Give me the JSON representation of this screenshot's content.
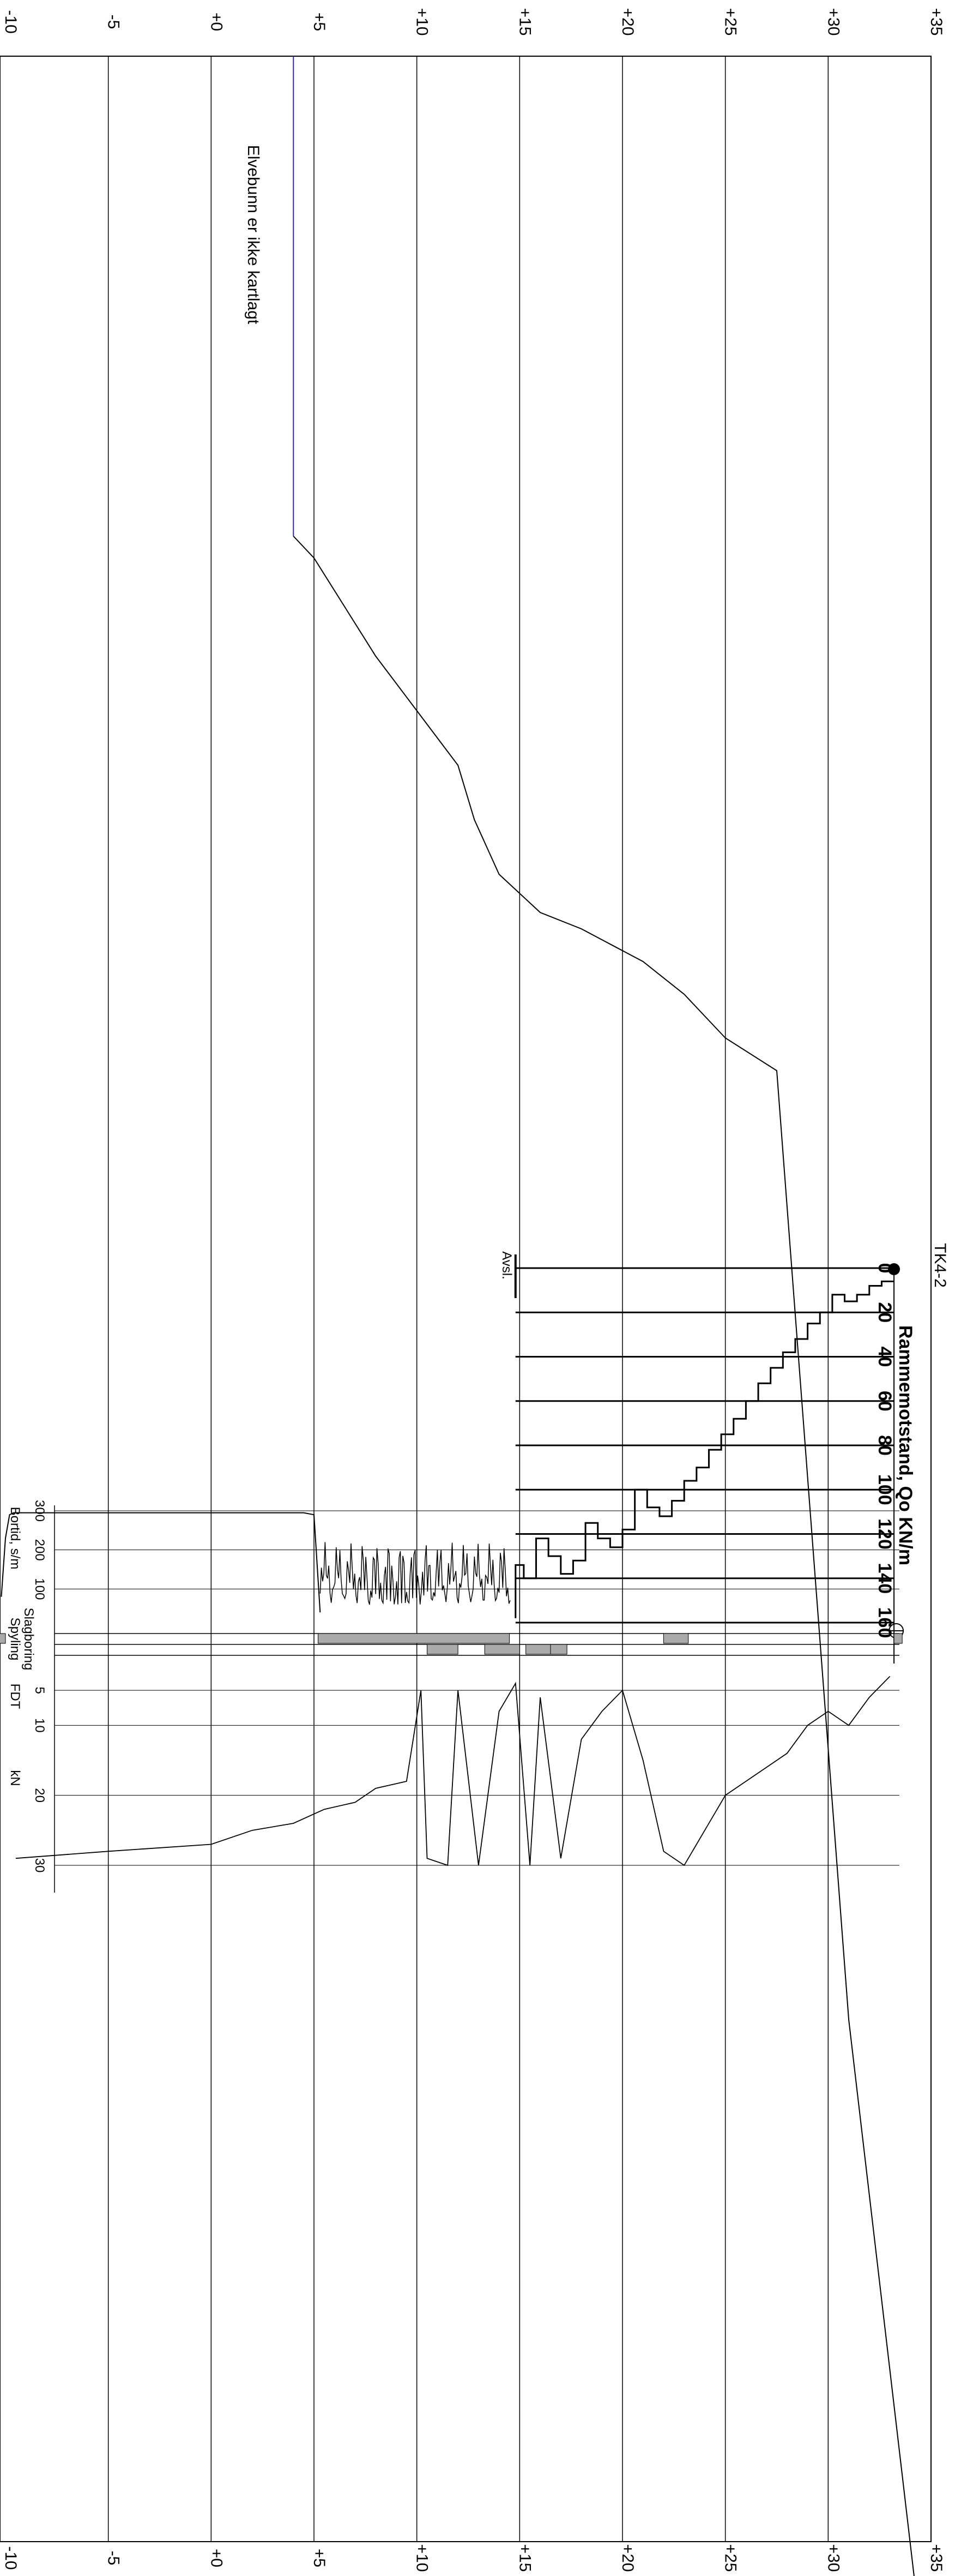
{
  "chart_data": {
    "type": "line",
    "title": "TK4-2",
    "elevation_ticks": [
      "-10",
      "-5",
      "+0",
      "+5",
      "+10",
      "+15",
      "+20",
      "+25",
      "+30",
      "+35"
    ],
    "elevation_values": [
      -10,
      -5,
      0,
      5,
      10,
      15,
      20,
      25,
      30,
      35
    ],
    "ylim": [
      -10,
      35
    ],
    "terrain_note": "Elvebunn er ikke kartlagt",
    "terrain_profile": {
      "name": "",
      "x": [
        0,
        880,
        920,
        1100,
        1200,
        1300,
        1400,
        1500,
        1570,
        1600,
        1660,
        1720,
        1800,
        1860,
        3600,
        4660
      ],
      "y": [
        4,
        4,
        5,
        8,
        10,
        12,
        12.8,
        14,
        16,
        18,
        21,
        23,
        25,
        27.5,
        31,
        34.3
      ]
    },
    "borehole": {
      "symbol_label": "⊖",
      "drilling_note": "Avsl.",
      "surface_elevation": 33.2,
      "stop_elevation": 14.8
    },
    "ram_resistance": {
      "title": "Rammemotstand, Q",
      "subscript": "o",
      "unit": "KN/m",
      "axis_ticks": [
        "0",
        "20",
        "40",
        "60",
        "80",
        "100",
        "120",
        "140",
        "160"
      ],
      "xlim": [
        0,
        160
      ],
      "depth_m": [
        0,
        0.6,
        1.2,
        1.8,
        2.4,
        3.0,
        3.6,
        4.2,
        4.8,
        5.4,
        6.0,
        6.6,
        7.2,
        7.8,
        8.4,
        9.0,
        9.6,
        10.2,
        10.8,
        11.4,
        12.0,
        12.6,
        13.2,
        13.8,
        14.4,
        15.0,
        15.6,
        16.2,
        16.8,
        17.4,
        18.0,
        18.4
      ],
      "values": [
        6,
        8,
        12,
        15,
        12,
        20,
        25,
        32,
        38,
        45,
        52,
        60,
        68,
        75,
        82,
        90,
        96,
        105,
        112,
        108,
        100,
        118,
        126,
        122,
        115,
        132,
        138,
        130,
        122,
        140,
        134,
        158
      ]
    },
    "rotary_pressure": {
      "label": "Bortid, s/m",
      "axis_ticks": [
        "300",
        "200",
        "100"
      ],
      "xlim": [
        0,
        300
      ],
      "elevation": [
        -10.2,
        -10.0,
        -9.8,
        -9.6,
        -9.4,
        -9.2,
        -9.0,
        -5,
        0,
        3,
        4.5,
        5.0,
        5.3
      ],
      "values": [
        80,
        230,
        290,
        295,
        295,
        295,
        295,
        295,
        295,
        295,
        295,
        290,
        40
      ]
    },
    "samples": {
      "legend_top": "Spyling",
      "legend_bottom": "Slagboring",
      "flushing_intervals": [
        [
          -10.3,
          -10.0
        ],
        [
          5.2,
          14.5
        ],
        [
          22.0,
          23.2
        ],
        [
          33.2,
          33.6
        ]
      ],
      "hammering_intervals": [
        [
          10.5,
          12.0
        ],
        [
          13.3,
          15.0
        ],
        [
          15.3,
          17.0
        ],
        [
          16.5,
          17.3
        ]
      ]
    },
    "thrust_force": {
      "label": "F",
      "label_sub": "DT",
      "unit": "kN",
      "axis_ticks": [
        "5",
        "10",
        "20",
        "30"
      ],
      "xlim": [
        0,
        30
      ],
      "elevation": [
        -9.5,
        -5,
        0,
        2,
        4,
        5.5,
        7,
        8,
        9.5,
        10.2,
        10.5,
        11.5,
        12,
        13,
        14,
        14.8,
        15.5,
        16,
        17,
        18,
        19,
        20,
        21,
        22,
        23,
        24,
        25,
        26,
        27,
        28,
        29,
        30,
        31,
        32,
        33
      ],
      "values": [
        29,
        28,
        27,
        25,
        24,
        22,
        21,
        19,
        18,
        5,
        29,
        30,
        5,
        30,
        8,
        4,
        30,
        6,
        29,
        12,
        8,
        5,
        15,
        28,
        30,
        25,
        20,
        18,
        16,
        14,
        10,
        8,
        10,
        6,
        3
      ]
    }
  }
}
